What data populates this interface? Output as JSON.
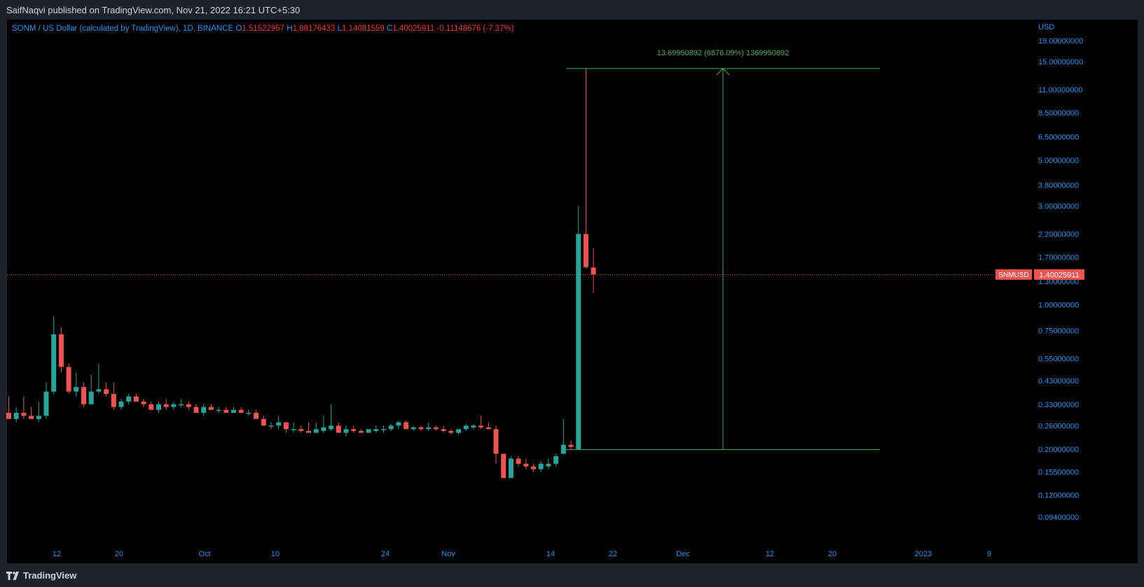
{
  "header": {
    "publisher": "SaifNaqvi published on TradingView.com, Nov 21, 2022 16:21 UTC+5:30"
  },
  "legend": {
    "symbol": "SONM / US Dollar (calculated by TradingView), 1D, BINANCE",
    "o_label": "O",
    "o_value": "1.51522957",
    "h_label": "H",
    "h_value": "1.88176433",
    "l_label": "L",
    "l_value": "1.14081559",
    "c_label": "C",
    "c_value": "1.40025911",
    "change": "-0.11148676 (-7.37%)"
  },
  "footer": {
    "brand": "TradingView"
  },
  "colors": {
    "up": "#26a69a",
    "down": "#ef5350",
    "measure": "#4caf50",
    "axis_text": "#2196f3",
    "background": "#000000"
  },
  "chart_data": {
    "type": "candlestick",
    "symbol": "SNMUSD",
    "currency": "USD",
    "scale": "log",
    "last_price": 1.40025911,
    "last_price_label": "1.40025911",
    "symbol_label": "SNMUSD",
    "y_ticks": [
      "19.00000000",
      "15.00000000",
      "11.00000000",
      "8.50000000",
      "6.50000000",
      "5.00000000",
      "3.80000000",
      "3.00000000",
      "2.20000000",
      "1.70000000",
      "1.30000000",
      "1.00000000",
      "0.75000000",
      "0.55000000",
      "0.43000000",
      "0.33000000",
      "0.26000000",
      "0.20000000",
      "0.15500000",
      "0.12000000",
      "0.09400000"
    ],
    "x_ticks": [
      "12",
      "20",
      "Oct",
      "10",
      "24",
      "Nov",
      "14",
      "22",
      "Dec",
      "12",
      "20",
      "2023",
      "9"
    ],
    "measure": {
      "label": "13.69950892 (6876.09%) 1369950892",
      "low": 0.199,
      "high": 13.9
    },
    "candles": [
      {
        "d": "2022-09-05",
        "o": 0.3,
        "h": 0.36,
        "l": 0.28,
        "c": 0.28
      },
      {
        "d": "2022-09-06",
        "o": 0.28,
        "h": 0.32,
        "l": 0.27,
        "c": 0.3
      },
      {
        "d": "2022-09-07",
        "o": 0.3,
        "h": 0.36,
        "l": 0.28,
        "c": 0.29
      },
      {
        "d": "2022-09-08",
        "o": 0.29,
        "h": 0.32,
        "l": 0.28,
        "c": 0.28
      },
      {
        "d": "2022-09-09",
        "o": 0.28,
        "h": 0.34,
        "l": 0.27,
        "c": 0.29
      },
      {
        "d": "2022-09-10",
        "o": 0.29,
        "h": 0.42,
        "l": 0.28,
        "c": 0.38
      },
      {
        "d": "2022-09-11",
        "o": 0.38,
        "h": 0.88,
        "l": 0.37,
        "c": 0.72
      },
      {
        "d": "2022-09-12",
        "o": 0.72,
        "h": 0.78,
        "l": 0.47,
        "c": 0.5
      },
      {
        "d": "2022-09-13",
        "o": 0.5,
        "h": 0.52,
        "l": 0.37,
        "c": 0.38
      },
      {
        "d": "2022-09-14",
        "o": 0.38,
        "h": 0.47,
        "l": 0.36,
        "c": 0.4
      },
      {
        "d": "2022-09-15",
        "o": 0.4,
        "h": 0.42,
        "l": 0.32,
        "c": 0.33
      },
      {
        "d": "2022-09-16",
        "o": 0.33,
        "h": 0.46,
        "l": 0.33,
        "c": 0.38
      },
      {
        "d": "2022-09-17",
        "o": 0.38,
        "h": 0.52,
        "l": 0.37,
        "c": 0.39
      },
      {
        "d": "2022-09-18",
        "o": 0.39,
        "h": 0.42,
        "l": 0.36,
        "c": 0.37
      },
      {
        "d": "2022-09-19",
        "o": 0.37,
        "h": 0.42,
        "l": 0.31,
        "c": 0.32
      },
      {
        "d": "2022-09-20",
        "o": 0.32,
        "h": 0.35,
        "l": 0.31,
        "c": 0.34
      },
      {
        "d": "2022-09-21",
        "o": 0.34,
        "h": 0.37,
        "l": 0.33,
        "c": 0.36
      },
      {
        "d": "2022-09-22",
        "o": 0.36,
        "h": 0.37,
        "l": 0.34,
        "c": 0.34
      },
      {
        "d": "2022-09-23",
        "o": 0.34,
        "h": 0.35,
        "l": 0.32,
        "c": 0.33
      },
      {
        "d": "2022-09-24",
        "o": 0.33,
        "h": 0.34,
        "l": 0.31,
        "c": 0.31
      },
      {
        "d": "2022-09-25",
        "o": 0.31,
        "h": 0.34,
        "l": 0.3,
        "c": 0.33
      },
      {
        "d": "2022-09-26",
        "o": 0.33,
        "h": 0.35,
        "l": 0.31,
        "c": 0.32
      },
      {
        "d": "2022-09-27",
        "o": 0.32,
        "h": 0.34,
        "l": 0.31,
        "c": 0.33
      },
      {
        "d": "2022-09-28",
        "o": 0.33,
        "h": 0.35,
        "l": 0.32,
        "c": 0.33
      },
      {
        "d": "2022-09-29",
        "o": 0.33,
        "h": 0.34,
        "l": 0.31,
        "c": 0.32
      },
      {
        "d": "2022-09-30",
        "o": 0.32,
        "h": 0.33,
        "l": 0.3,
        "c": 0.3
      },
      {
        "d": "2022-10-01",
        "o": 0.3,
        "h": 0.33,
        "l": 0.29,
        "c": 0.32
      },
      {
        "d": "2022-10-02",
        "o": 0.32,
        "h": 0.33,
        "l": 0.31,
        "c": 0.31
      },
      {
        "d": "2022-10-03",
        "o": 0.31,
        "h": 0.32,
        "l": 0.3,
        "c": 0.31
      },
      {
        "d": "2022-10-04",
        "o": 0.31,
        "h": 0.32,
        "l": 0.3,
        "c": 0.3
      },
      {
        "d": "2022-10-05",
        "o": 0.3,
        "h": 0.32,
        "l": 0.3,
        "c": 0.31
      },
      {
        "d": "2022-10-06",
        "o": 0.31,
        "h": 0.32,
        "l": 0.3,
        "c": 0.3
      },
      {
        "d": "2022-10-07",
        "o": 0.3,
        "h": 0.31,
        "l": 0.29,
        "c": 0.3
      },
      {
        "d": "2022-10-08",
        "o": 0.3,
        "h": 0.31,
        "l": 0.28,
        "c": 0.28
      },
      {
        "d": "2022-10-09",
        "o": 0.28,
        "h": 0.29,
        "l": 0.26,
        "c": 0.26
      },
      {
        "d": "2022-10-10",
        "o": 0.26,
        "h": 0.27,
        "l": 0.25,
        "c": 0.26
      },
      {
        "d": "2022-10-11",
        "o": 0.26,
        "h": 0.29,
        "l": 0.25,
        "c": 0.27
      },
      {
        "d": "2022-10-12",
        "o": 0.27,
        "h": 0.27,
        "l": 0.24,
        "c": 0.25
      },
      {
        "d": "2022-10-13",
        "o": 0.25,
        "h": 0.27,
        "l": 0.24,
        "c": 0.25
      },
      {
        "d": "2022-10-14",
        "o": 0.25,
        "h": 0.26,
        "l": 0.24,
        "c": 0.245
      },
      {
        "d": "2022-10-15",
        "o": 0.245,
        "h": 0.27,
        "l": 0.24,
        "c": 0.24
      },
      {
        "d": "2022-10-16",
        "o": 0.24,
        "h": 0.27,
        "l": 0.24,
        "c": 0.25
      },
      {
        "d": "2022-10-17",
        "o": 0.245,
        "h": 0.29,
        "l": 0.24,
        "c": 0.255
      },
      {
        "d": "2022-10-18",
        "o": 0.25,
        "h": 0.33,
        "l": 0.245,
        "c": 0.26
      },
      {
        "d": "2022-10-19",
        "o": 0.26,
        "h": 0.27,
        "l": 0.24,
        "c": 0.24
      },
      {
        "d": "2022-10-20",
        "o": 0.24,
        "h": 0.26,
        "l": 0.23,
        "c": 0.25
      },
      {
        "d": "2022-10-21",
        "o": 0.25,
        "h": 0.26,
        "l": 0.24,
        "c": 0.245
      },
      {
        "d": "2022-10-22",
        "o": 0.245,
        "h": 0.25,
        "l": 0.24,
        "c": 0.24
      },
      {
        "d": "2022-10-23",
        "o": 0.24,
        "h": 0.25,
        "l": 0.24,
        "c": 0.25
      },
      {
        "d": "2022-10-24",
        "o": 0.245,
        "h": 0.26,
        "l": 0.24,
        "c": 0.25
      },
      {
        "d": "2022-10-25",
        "o": 0.25,
        "h": 0.26,
        "l": 0.24,
        "c": 0.25
      },
      {
        "d": "2022-10-26",
        "o": 0.25,
        "h": 0.265,
        "l": 0.245,
        "c": 0.26
      },
      {
        "d": "2022-10-27",
        "o": 0.26,
        "h": 0.275,
        "l": 0.25,
        "c": 0.27
      },
      {
        "d": "2022-10-28",
        "o": 0.27,
        "h": 0.275,
        "l": 0.25,
        "c": 0.25
      },
      {
        "d": "2022-10-29",
        "o": 0.25,
        "h": 0.26,
        "l": 0.245,
        "c": 0.255
      },
      {
        "d": "2022-10-30",
        "o": 0.255,
        "h": 0.26,
        "l": 0.245,
        "c": 0.25
      },
      {
        "d": "2022-10-31",
        "o": 0.25,
        "h": 0.27,
        "l": 0.245,
        "c": 0.255
      },
      {
        "d": "2022-11-01",
        "o": 0.255,
        "h": 0.26,
        "l": 0.245,
        "c": 0.25
      },
      {
        "d": "2022-11-02",
        "o": 0.25,
        "h": 0.26,
        "l": 0.24,
        "c": 0.245
      },
      {
        "d": "2022-11-03",
        "o": 0.245,
        "h": 0.25,
        "l": 0.235,
        "c": 0.24
      },
      {
        "d": "2022-11-04",
        "o": 0.24,
        "h": 0.25,
        "l": 0.235,
        "c": 0.25
      },
      {
        "d": "2022-11-05",
        "o": 0.25,
        "h": 0.265,
        "l": 0.245,
        "c": 0.26
      },
      {
        "d": "2022-11-06",
        "o": 0.255,
        "h": 0.265,
        "l": 0.25,
        "c": 0.26
      },
      {
        "d": "2022-11-07",
        "o": 0.26,
        "h": 0.29,
        "l": 0.25,
        "c": 0.255
      },
      {
        "d": "2022-11-08",
        "o": 0.255,
        "h": 0.27,
        "l": 0.25,
        "c": 0.25
      },
      {
        "d": "2022-11-09",
        "o": 0.25,
        "h": 0.26,
        "l": 0.17,
        "c": 0.19
      },
      {
        "d": "2022-11-10",
        "o": 0.19,
        "h": 0.19,
        "l": 0.145,
        "c": 0.145
      },
      {
        "d": "2022-11-11",
        "o": 0.145,
        "h": 0.185,
        "l": 0.145,
        "c": 0.18
      },
      {
        "d": "2022-11-12",
        "o": 0.18,
        "h": 0.185,
        "l": 0.165,
        "c": 0.17
      },
      {
        "d": "2022-11-13",
        "o": 0.17,
        "h": 0.18,
        "l": 0.16,
        "c": 0.165
      },
      {
        "d": "2022-11-14",
        "o": 0.165,
        "h": 0.17,
        "l": 0.155,
        "c": 0.16
      },
      {
        "d": "2022-11-15",
        "o": 0.16,
        "h": 0.175,
        "l": 0.155,
        "c": 0.17
      },
      {
        "d": "2022-11-16",
        "o": 0.165,
        "h": 0.18,
        "l": 0.16,
        "c": 0.17
      },
      {
        "d": "2022-11-17",
        "o": 0.17,
        "h": 0.19,
        "l": 0.165,
        "c": 0.185
      },
      {
        "d": "2022-11-18",
        "o": 0.19,
        "h": 0.28,
        "l": 0.19,
        "c": 0.21
      },
      {
        "d": "2022-11-19",
        "o": 0.21,
        "h": 0.22,
        "l": 0.2,
        "c": 0.205
      },
      {
        "d": "2022-11-20",
        "o": 0.2,
        "h": 3.0,
        "l": 0.2,
        "c": 2.2
      },
      {
        "d": "2022-11-21",
        "o": 2.2,
        "h": 13.9,
        "l": 1.5,
        "c": 1.52
      },
      {
        "d": "2022-11-22",
        "o": 1.51522957,
        "h": 1.88176433,
        "l": 1.14081559,
        "c": 1.40025911
      }
    ]
  }
}
